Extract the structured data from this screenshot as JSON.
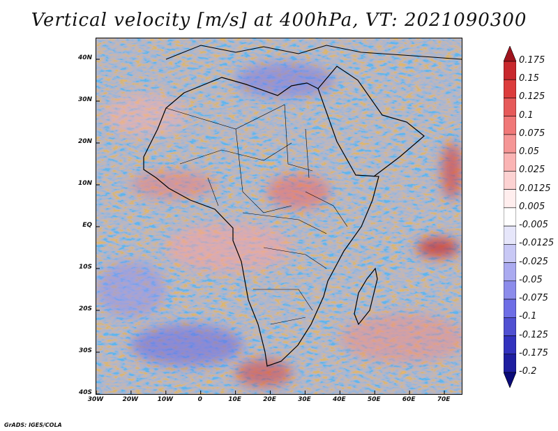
{
  "title": "Vertical velocity [m/s] at 400hPa, VT: 2021090300",
  "credit": "GrADS: IGES/COLA",
  "map": {
    "lon_range": [
      -30,
      75
    ],
    "lat_range": [
      -40,
      45
    ],
    "lat_ticks": [
      "40N",
      "30N",
      "20N",
      "10N",
      "EQ",
      "10S",
      "20S",
      "30S",
      "40S"
    ],
    "lon_ticks": [
      "30W",
      "20W",
      "10W",
      "0",
      "10E",
      "20E",
      "30E",
      "40E",
      "50E",
      "60E",
      "70E"
    ],
    "background_color": "#d9dcf6",
    "coastline_color": "#000000"
  },
  "colorbar": {
    "labels": [
      "0.175",
      "0.15",
      "0.125",
      "0.1",
      "0.075",
      "0.05",
      "0.025",
      "0.0125",
      "0.005",
      "-0.005",
      "-0.0125",
      "-0.025",
      "-0.05",
      "-0.075",
      "-0.1",
      "-0.125",
      "-0.175",
      "-0.2"
    ],
    "colors": [
      "#a0141e",
      "#c8282d",
      "#dc3c3c",
      "#e65a5a",
      "#f07878",
      "#f59696",
      "#fab4b4",
      "#fcd2d2",
      "#ffeeee",
      "#ffffff",
      "#e6e6fa",
      "#c8c8f5",
      "#aaaaf0",
      "#8c8ceb",
      "#6e6ee6",
      "#5050d2",
      "#3232be",
      "#1e1ea0",
      "#0a0a78"
    ]
  }
}
